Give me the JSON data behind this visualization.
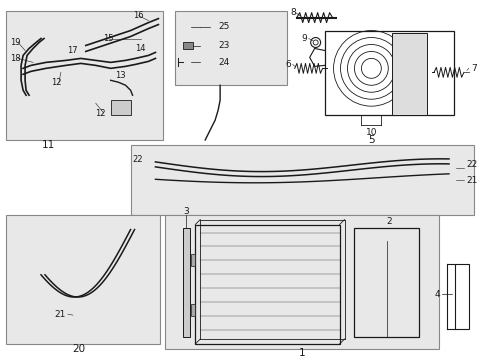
{
  "bg_color": "#ffffff",
  "line_color": "#1a1a1a",
  "box_fill": "#e8e8e8",
  "box_edge": "#888888",
  "fig_width": 4.89,
  "fig_height": 3.6,
  "dpi": 100,
  "labels": {
    "box11_num": "11",
    "box20_num": "20",
    "box1_num": "1",
    "item2": "2",
    "item3": "3",
    "item4": "4",
    "item5": "5",
    "item6": "6",
    "item7": "7",
    "item8": "8",
    "item9": "9",
    "item10": "10",
    "item12a": "12",
    "item12b": "12",
    "item13": "13",
    "item14": "14",
    "item15": "15",
    "item16": "16",
    "item17": "17",
    "item18": "18",
    "item19": "19",
    "item21a": "21",
    "item21b": "21",
    "item22a": "22",
    "item22b": "22",
    "item23": "23",
    "item24": "24",
    "item25": "25"
  }
}
